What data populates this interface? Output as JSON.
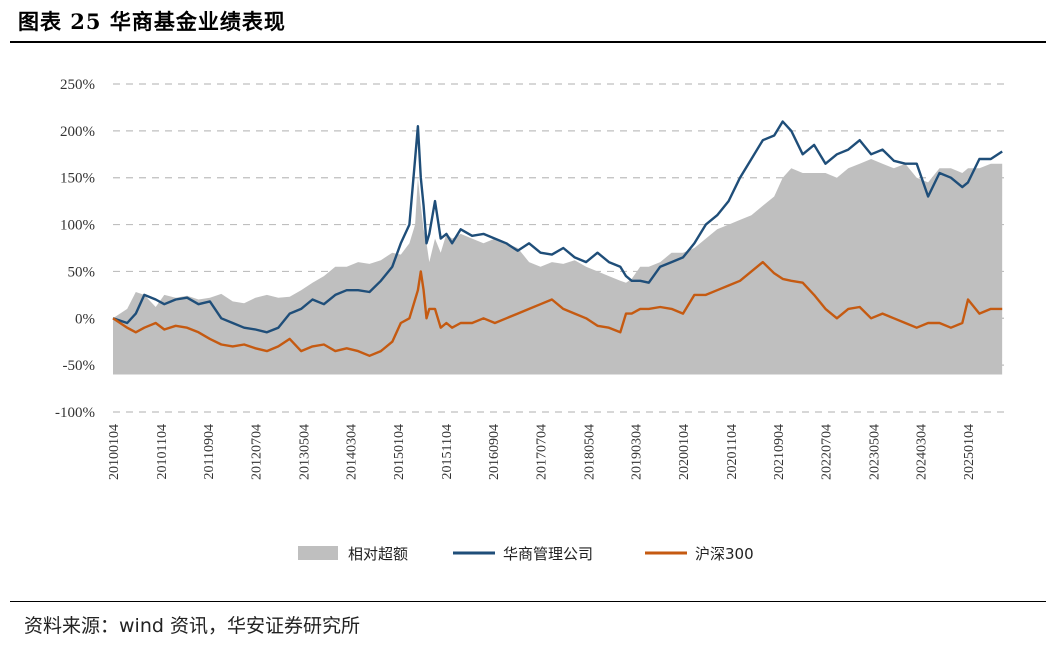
{
  "header": {
    "title": "图表 25  华商基金业绩表现"
  },
  "footer": {
    "source": "资料来源：wind 资讯，华安证券研究所"
  },
  "chart_data": {
    "type": "line",
    "ylim": [
      -100,
      250
    ],
    "yticks": [
      -100,
      -50,
      0,
      50,
      100,
      150,
      200,
      250
    ],
    "ytick_labels": [
      "-100%",
      "-50%",
      "0%",
      "50%",
      "100%",
      "150%",
      "200%",
      "250%"
    ],
    "grid": "horizontal dashed",
    "legend_position": "bottom-center",
    "x_labels": [
      "20100104",
      "20101104",
      "20110904",
      "20120704",
      "20130504",
      "20140304",
      "20150104",
      "20151104",
      "20160904",
      "20170704",
      "20180504",
      "20190304",
      "20200104",
      "20201104",
      "20210904",
      "20220704",
      "20230504",
      "20240304",
      "20250104"
    ],
    "x_label_positions": [
      2010.0,
      2010.84,
      2011.67,
      2012.5,
      2013.34,
      2014.17,
      2015.0,
      2015.84,
      2016.67,
      2017.5,
      2018.34,
      2019.17,
      2020.0,
      2020.84,
      2021.67,
      2022.5,
      2023.34,
      2024.17,
      2025.0
    ],
    "x_range": [
      2010.0,
      2025.65
    ],
    "x": [
      2010.0,
      2010.25,
      2010.4,
      2010.55,
      2010.75,
      2010.9,
      2011.1,
      2011.3,
      2011.5,
      2011.7,
      2011.9,
      2012.1,
      2012.3,
      2012.5,
      2012.7,
      2012.9,
      2013.1,
      2013.3,
      2013.5,
      2013.7,
      2013.9,
      2014.1,
      2014.3,
      2014.5,
      2014.7,
      2014.9,
      2015.05,
      2015.2,
      2015.3,
      2015.35,
      2015.4,
      2015.45,
      2015.5,
      2015.55,
      2015.65,
      2015.75,
      2015.85,
      2015.95,
      2016.1,
      2016.3,
      2016.5,
      2016.7,
      2016.9,
      2017.1,
      2017.3,
      2017.5,
      2017.7,
      2017.9,
      2018.1,
      2018.3,
      2018.5,
      2018.7,
      2018.9,
      2019.0,
      2019.1,
      2019.25,
      2019.4,
      2019.6,
      2019.8,
      2020.0,
      2020.2,
      2020.4,
      2020.6,
      2020.8,
      2021.0,
      2021.2,
      2021.4,
      2021.6,
      2021.75,
      2021.9,
      2022.1,
      2022.3,
      2022.5,
      2022.7,
      2022.9,
      2023.1,
      2023.3,
      2023.5,
      2023.7,
      2023.9,
      2024.1,
      2024.3,
      2024.5,
      2024.7,
      2024.9,
      2025.0,
      2025.2,
      2025.4,
      2025.6
    ],
    "series": [
      {
        "name": "相对超额",
        "color": "#bfbfbf",
        "style": "area",
        "values": [
          0,
          10,
          28,
          25,
          12,
          25,
          22,
          24,
          20,
          22,
          26,
          18,
          16,
          22,
          25,
          22,
          23,
          30,
          38,
          45,
          55,
          55,
          60,
          58,
          62,
          70,
          68,
          80,
          100,
          150,
          120,
          95,
          80,
          60,
          85,
          70,
          90,
          85,
          90,
          85,
          80,
          85,
          80,
          75,
          60,
          55,
          60,
          58,
          62,
          55,
          50,
          45,
          40,
          38,
          42,
          55,
          55,
          60,
          70,
          70,
          75,
          85,
          95,
          100,
          105,
          110,
          120,
          130,
          150,
          160,
          155,
          155,
          155,
          150,
          160,
          165,
          170,
          165,
          160,
          165,
          150,
          145,
          160,
          160,
          155,
          160,
          160,
          165,
          165
        ]
      },
      {
        "name": "华商管理公司",
        "color": "#1f4e79",
        "style": "line",
        "values": [
          0,
          -5,
          5,
          25,
          20,
          15,
          20,
          22,
          15,
          18,
          0,
          -5,
          -10,
          -12,
          -15,
          -10,
          5,
          10,
          20,
          15,
          25,
          30,
          30,
          28,
          40,
          55,
          80,
          100,
          170,
          205,
          150,
          120,
          80,
          90,
          125,
          85,
          90,
          80,
          95,
          88,
          90,
          85,
          80,
          72,
          80,
          70,
          68,
          75,
          65,
          60,
          70,
          60,
          55,
          45,
          40,
          40,
          38,
          55,
          60,
          65,
          80,
          100,
          110,
          125,
          150,
          170,
          190,
          195,
          210,
          200,
          175,
          185,
          165,
          175,
          180,
          190,
          175,
          180,
          168,
          165,
          165,
          130,
          155,
          150,
          140,
          145,
          170,
          170,
          178
        ]
      },
      {
        "name": "沪深300",
        "color": "#c55a11",
        "style": "line",
        "values": [
          0,
          -10,
          -15,
          -10,
          -5,
          -12,
          -8,
          -10,
          -15,
          -22,
          -28,
          -30,
          -28,
          -32,
          -35,
          -30,
          -22,
          -35,
          -30,
          -28,
          -35,
          -32,
          -35,
          -40,
          -35,
          -25,
          -5,
          0,
          20,
          30,
          50,
          30,
          0,
          10,
          10,
          -10,
          -5,
          -10,
          -5,
          -5,
          0,
          -5,
          0,
          5,
          10,
          15,
          20,
          10,
          5,
          0,
          -8,
          -10,
          -15,
          5,
          5,
          10,
          10,
          12,
          10,
          5,
          25,
          25,
          30,
          35,
          40,
          50,
          60,
          48,
          42,
          40,
          38,
          25,
          10,
          0,
          10,
          12,
          0,
          5,
          0,
          -5,
          -10,
          -5,
          -5,
          -10,
          -5,
          20,
          5,
          10,
          10
        ]
      }
    ]
  }
}
